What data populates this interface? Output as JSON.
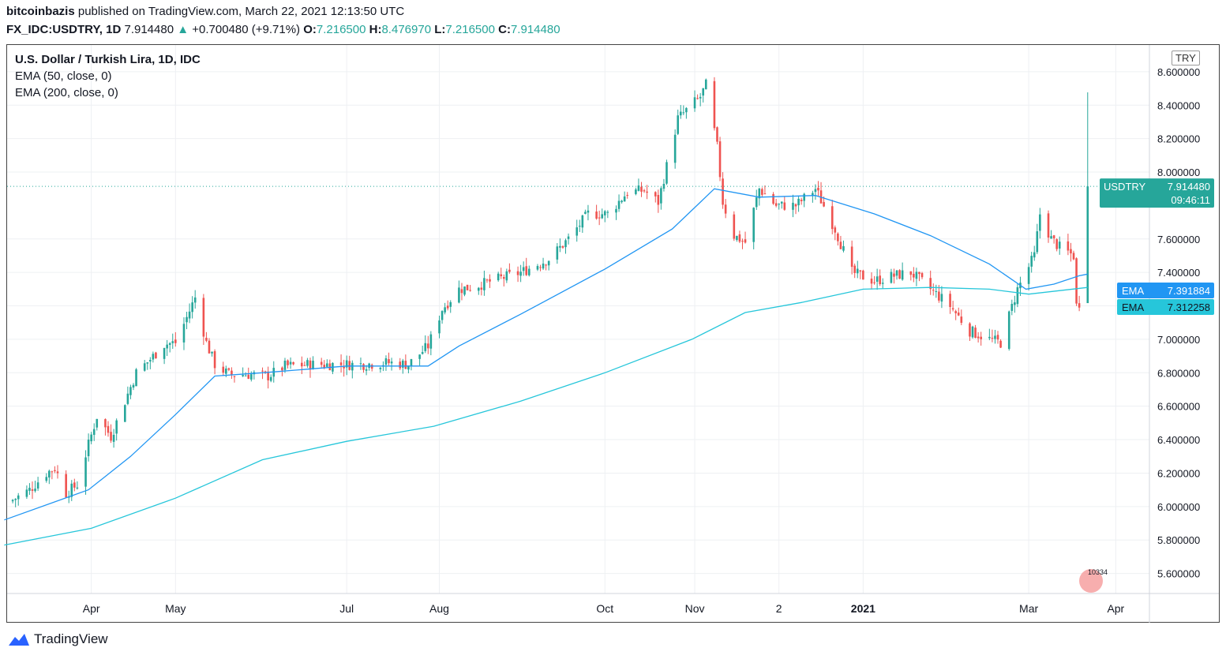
{
  "header": {
    "line1_author": "bitcoinbazis",
    "line1_rest": "published on TradingView.com, March 22, 2021 12:13:50 UTC",
    "symbol": "FX_IDC:USDTRY, 1D",
    "last": "7.914480",
    "change_arrow": "▲",
    "change": "+0.700480 (+9.71%)",
    "o_label": "O:",
    "o_value": "7.216500",
    "h_label": "H:",
    "h_value": "8.476970",
    "l_label": "L:",
    "l_value": "7.216500",
    "c_label": "C:",
    "c_value": "7.914480"
  },
  "legend": {
    "title": "U.S. Dollar / Turkish Lira, 1D, IDC",
    "ema50": "EMA (50, close, 0)",
    "ema200": "EMA (200, close, 0)"
  },
  "currency_tag": "TRY",
  "footer_brand": "TradingView",
  "watermark_badge": "10334",
  "colors": {
    "up": "#26a69a",
    "down": "#ef5350",
    "ema50": "#2196f3",
    "ema200": "#26c6da",
    "last_label_bg": "#26a69a",
    "ema50_label_bg": "#2196f3",
    "ema200_label_bg": "#26c6da"
  },
  "chart_data": {
    "type": "candlestick",
    "title": "U.S. Dollar / Turkish Lira, 1D, IDC",
    "ylim": [
      5.48,
      8.76
    ],
    "y_ticks": [
      "5.600000",
      "5.800000",
      "6.000000",
      "6.200000",
      "6.400000",
      "6.600000",
      "6.800000",
      "7.000000",
      "7.200000",
      "7.400000",
      "7.600000",
      "8.000000",
      "8.200000",
      "8.400000",
      "8.600000"
    ],
    "x_ticks": [
      {
        "label": "Apr",
        "date": "2020-04-01"
      },
      {
        "label": "May",
        "date": "2020-05-01"
      },
      {
        "label": "Jul",
        "date": "2020-07-01"
      },
      {
        "label": "Aug",
        "date": "2020-08-03"
      },
      {
        "label": "Oct",
        "date": "2020-10-01"
      },
      {
        "label": "Nov",
        "date": "2020-11-02"
      },
      {
        "label": "2",
        "date": "2020-12-02"
      },
      {
        "label": "2021",
        "date": "2021-01-01",
        "bold": true
      },
      {
        "label": "Mar",
        "date": "2021-03-01"
      },
      {
        "label": "Apr",
        "date": "2021-04-01"
      }
    ],
    "grid": true,
    "close_path": [
      [
        "2020-03-04",
        6.04
      ],
      [
        "2020-03-10",
        6.1
      ],
      [
        "2020-03-16",
        6.2
      ],
      [
        "2020-03-19",
        6.23
      ],
      [
        "2020-03-23",
        6.08
      ],
      [
        "2020-03-27",
        6.13
      ],
      [
        "2020-03-31",
        6.37
      ],
      [
        "2020-04-03",
        6.54
      ],
      [
        "2020-04-08",
        6.42
      ],
      [
        "2020-04-13",
        6.63
      ],
      [
        "2020-04-17",
        6.8
      ],
      [
        "2020-04-22",
        6.88
      ],
      [
        "2020-04-27",
        6.97
      ],
      [
        "2020-05-01",
        6.98
      ],
      [
        "2020-05-05",
        7.13
      ],
      [
        "2020-05-08",
        7.25
      ],
      [
        "2020-05-12",
        6.98
      ],
      [
        "2020-05-15",
        6.85
      ],
      [
        "2020-05-20",
        6.79
      ],
      [
        "2020-05-27",
        6.79
      ],
      [
        "2020-06-03",
        6.78
      ],
      [
        "2020-06-09",
        6.84
      ],
      [
        "2020-06-18",
        6.85
      ],
      [
        "2020-06-26",
        6.85
      ],
      [
        "2020-07-06",
        6.85
      ],
      [
        "2020-07-16",
        6.86
      ],
      [
        "2020-07-23",
        6.85
      ],
      [
        "2020-07-30",
        6.96
      ],
      [
        "2020-08-04",
        7.18
      ],
      [
        "2020-08-10",
        7.3
      ],
      [
        "2020-08-14",
        7.31
      ],
      [
        "2020-08-24",
        7.36
      ],
      [
        "2020-09-01",
        7.4
      ],
      [
        "2020-09-11",
        7.48
      ],
      [
        "2020-09-18",
        7.6
      ],
      [
        "2020-09-25",
        7.75
      ],
      [
        "2020-10-02",
        7.75
      ],
      [
        "2020-10-09",
        7.88
      ],
      [
        "2020-10-15",
        7.89
      ],
      [
        "2020-10-20",
        7.82
      ],
      [
        "2020-10-27",
        8.32
      ],
      [
        "2020-11-04",
        8.45
      ],
      [
        "2020-11-06",
        8.52
      ],
      [
        "2020-11-10",
        8.15
      ],
      [
        "2020-11-12",
        7.82
      ],
      [
        "2020-11-16",
        7.62
      ],
      [
        "2020-11-20",
        7.58
      ],
      [
        "2020-11-25",
        7.9
      ],
      [
        "2020-12-01",
        7.8
      ],
      [
        "2020-12-08",
        7.8
      ],
      [
        "2020-12-15",
        7.9
      ],
      [
        "2020-12-22",
        7.66
      ],
      [
        "2020-12-28",
        7.4
      ],
      [
        "2021-01-05",
        7.35
      ],
      [
        "2021-01-12",
        7.38
      ],
      [
        "2021-01-18",
        7.4
      ],
      [
        "2021-01-25",
        7.3
      ],
      [
        "2021-02-01",
        7.2
      ],
      [
        "2021-02-08",
        7.05
      ],
      [
        "2021-02-15",
        7.0
      ],
      [
        "2021-02-19",
        6.98
      ],
      [
        "2021-02-25",
        7.3
      ],
      [
        "2021-03-03",
        7.5
      ],
      [
        "2021-03-05",
        7.75
      ],
      [
        "2021-03-09",
        7.6
      ],
      [
        "2021-03-12",
        7.55
      ],
      [
        "2021-03-17",
        7.5
      ],
      [
        "2021-03-18",
        7.2
      ],
      [
        "2021-03-19",
        7.22
      ],
      [
        "2021-03-22",
        7.91
      ]
    ],
    "last_candle": {
      "date": "2021-03-22",
      "open": 7.2165,
      "high": 8.47697,
      "low": 7.2165,
      "close": 7.91448
    },
    "series": [
      {
        "name": "EMA (50, close, 0)",
        "label": "EMA",
        "value_label": "7.391884",
        "points": [
          [
            "2020-03-01",
            5.92
          ],
          [
            "2020-03-31",
            6.1
          ],
          [
            "2020-04-15",
            6.3
          ],
          [
            "2020-05-01",
            6.55
          ],
          [
            "2020-05-15",
            6.78
          ],
          [
            "2020-06-01",
            6.8
          ],
          [
            "2020-07-01",
            6.84
          ],
          [
            "2020-07-30",
            6.84
          ],
          [
            "2020-08-10",
            6.96
          ],
          [
            "2020-09-01",
            7.15
          ],
          [
            "2020-10-01",
            7.42
          ],
          [
            "2020-10-25",
            7.66
          ],
          [
            "2020-11-09",
            7.9
          ],
          [
            "2020-11-25",
            7.85
          ],
          [
            "2020-12-15",
            7.86
          ],
          [
            "2021-01-05",
            7.75
          ],
          [
            "2021-01-25",
            7.62
          ],
          [
            "2021-02-15",
            7.45
          ],
          [
            "2021-02-28",
            7.3
          ],
          [
            "2021-03-10",
            7.33
          ],
          [
            "2021-03-19",
            7.38
          ],
          [
            "2021-03-22",
            7.39
          ]
        ]
      },
      {
        "name": "EMA (200, close, 0)",
        "label": "EMA",
        "value_label": "7.312258",
        "points": [
          [
            "2020-03-01",
            5.77
          ],
          [
            "2020-04-01",
            5.87
          ],
          [
            "2020-05-01",
            6.05
          ],
          [
            "2020-06-01",
            6.28
          ],
          [
            "2020-07-01",
            6.39
          ],
          [
            "2020-08-01",
            6.48
          ],
          [
            "2020-09-01",
            6.63
          ],
          [
            "2020-10-01",
            6.8
          ],
          [
            "2020-11-01",
            7.0
          ],
          [
            "2020-11-20",
            7.16
          ],
          [
            "2020-12-10",
            7.22
          ],
          [
            "2021-01-01",
            7.3
          ],
          [
            "2021-01-25",
            7.31
          ],
          [
            "2021-02-15",
            7.3
          ],
          [
            "2021-03-01",
            7.27
          ],
          [
            "2021-03-22",
            7.31
          ]
        ]
      }
    ],
    "price_label": {
      "symbol": "USDTRY",
      "value": "7.914480",
      "countdown": "09:46:11"
    }
  }
}
